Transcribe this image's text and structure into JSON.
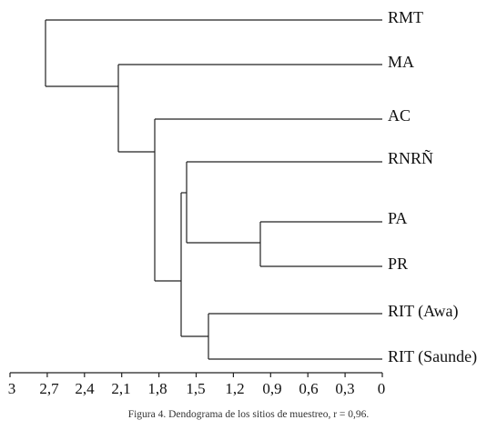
{
  "dendrogram": {
    "leaves": [
      "RMT",
      "MA",
      "AC",
      "RNRÑ",
      "PA",
      "PR",
      "RIT (Awa)",
      "RIT (Saunde)"
    ],
    "merges": [
      {
        "join": [
          "PA",
          "PR"
        ],
        "height": 1.0
      },
      {
        "join": [
          "RIT (Awa)",
          "RIT (Saunde)"
        ],
        "height": 1.4
      },
      {
        "join": [
          "RNRÑ",
          "PA+PR"
        ],
        "height": 1.57
      },
      {
        "join": [
          "RNRÑ+PA+PR",
          "RIT (Awa)+RIT (Saunde)"
        ],
        "height": 1.62
      },
      {
        "join": [
          "AC",
          "RNRÑ+PA+PR+RIT"
        ],
        "height": 1.84
      },
      {
        "join": [
          "MA",
          "AC+..."
        ],
        "height": 2.13
      },
      {
        "join": [
          "RMT",
          "MA+..."
        ],
        "height": 2.73
      }
    ],
    "axis": {
      "ticks": [
        "3",
        "2,7",
        "2,4",
        "2,1",
        "1,8",
        "1,5",
        "1,2",
        "0,9",
        "0,6",
        "0,3",
        "0"
      ],
      "range": [
        3,
        0
      ]
    }
  },
  "caption": "Figura 4. Dendograma de los sitios de muestreo, r = 0,96.",
  "colors": {
    "line": "#222222",
    "text": "#111111"
  }
}
